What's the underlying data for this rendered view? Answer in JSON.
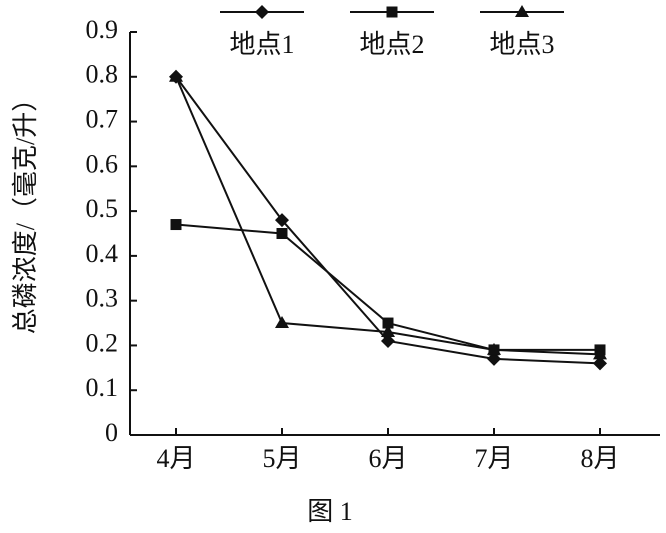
{
  "chart_data": {
    "type": "line",
    "y_label": "总磷浓度/（毫克/升）",
    "caption": "图 1",
    "categories": [
      "4月",
      "5月",
      "6月",
      "7月",
      "8月"
    ],
    "series": [
      {
        "name": "地点1",
        "color": "#111111",
        "marker": "diamond",
        "values": [
          0.8,
          0.48,
          0.21,
          0.17,
          0.16
        ]
      },
      {
        "name": "地点2",
        "color": "#111111",
        "marker": "square",
        "values": [
          0.47,
          0.45,
          0.25,
          0.19,
          0.19
        ]
      },
      {
        "name": "地点3",
        "color": "#111111",
        "marker": "triangle",
        "values": [
          0.8,
          0.25,
          0.23,
          0.19,
          0.18
        ]
      }
    ],
    "ylim": [
      0,
      0.9
    ],
    "yticks": [
      0,
      0.1,
      0.2,
      0.3,
      0.4,
      0.5,
      0.6,
      0.7,
      0.8,
      0.9
    ],
    "grid": false
  }
}
